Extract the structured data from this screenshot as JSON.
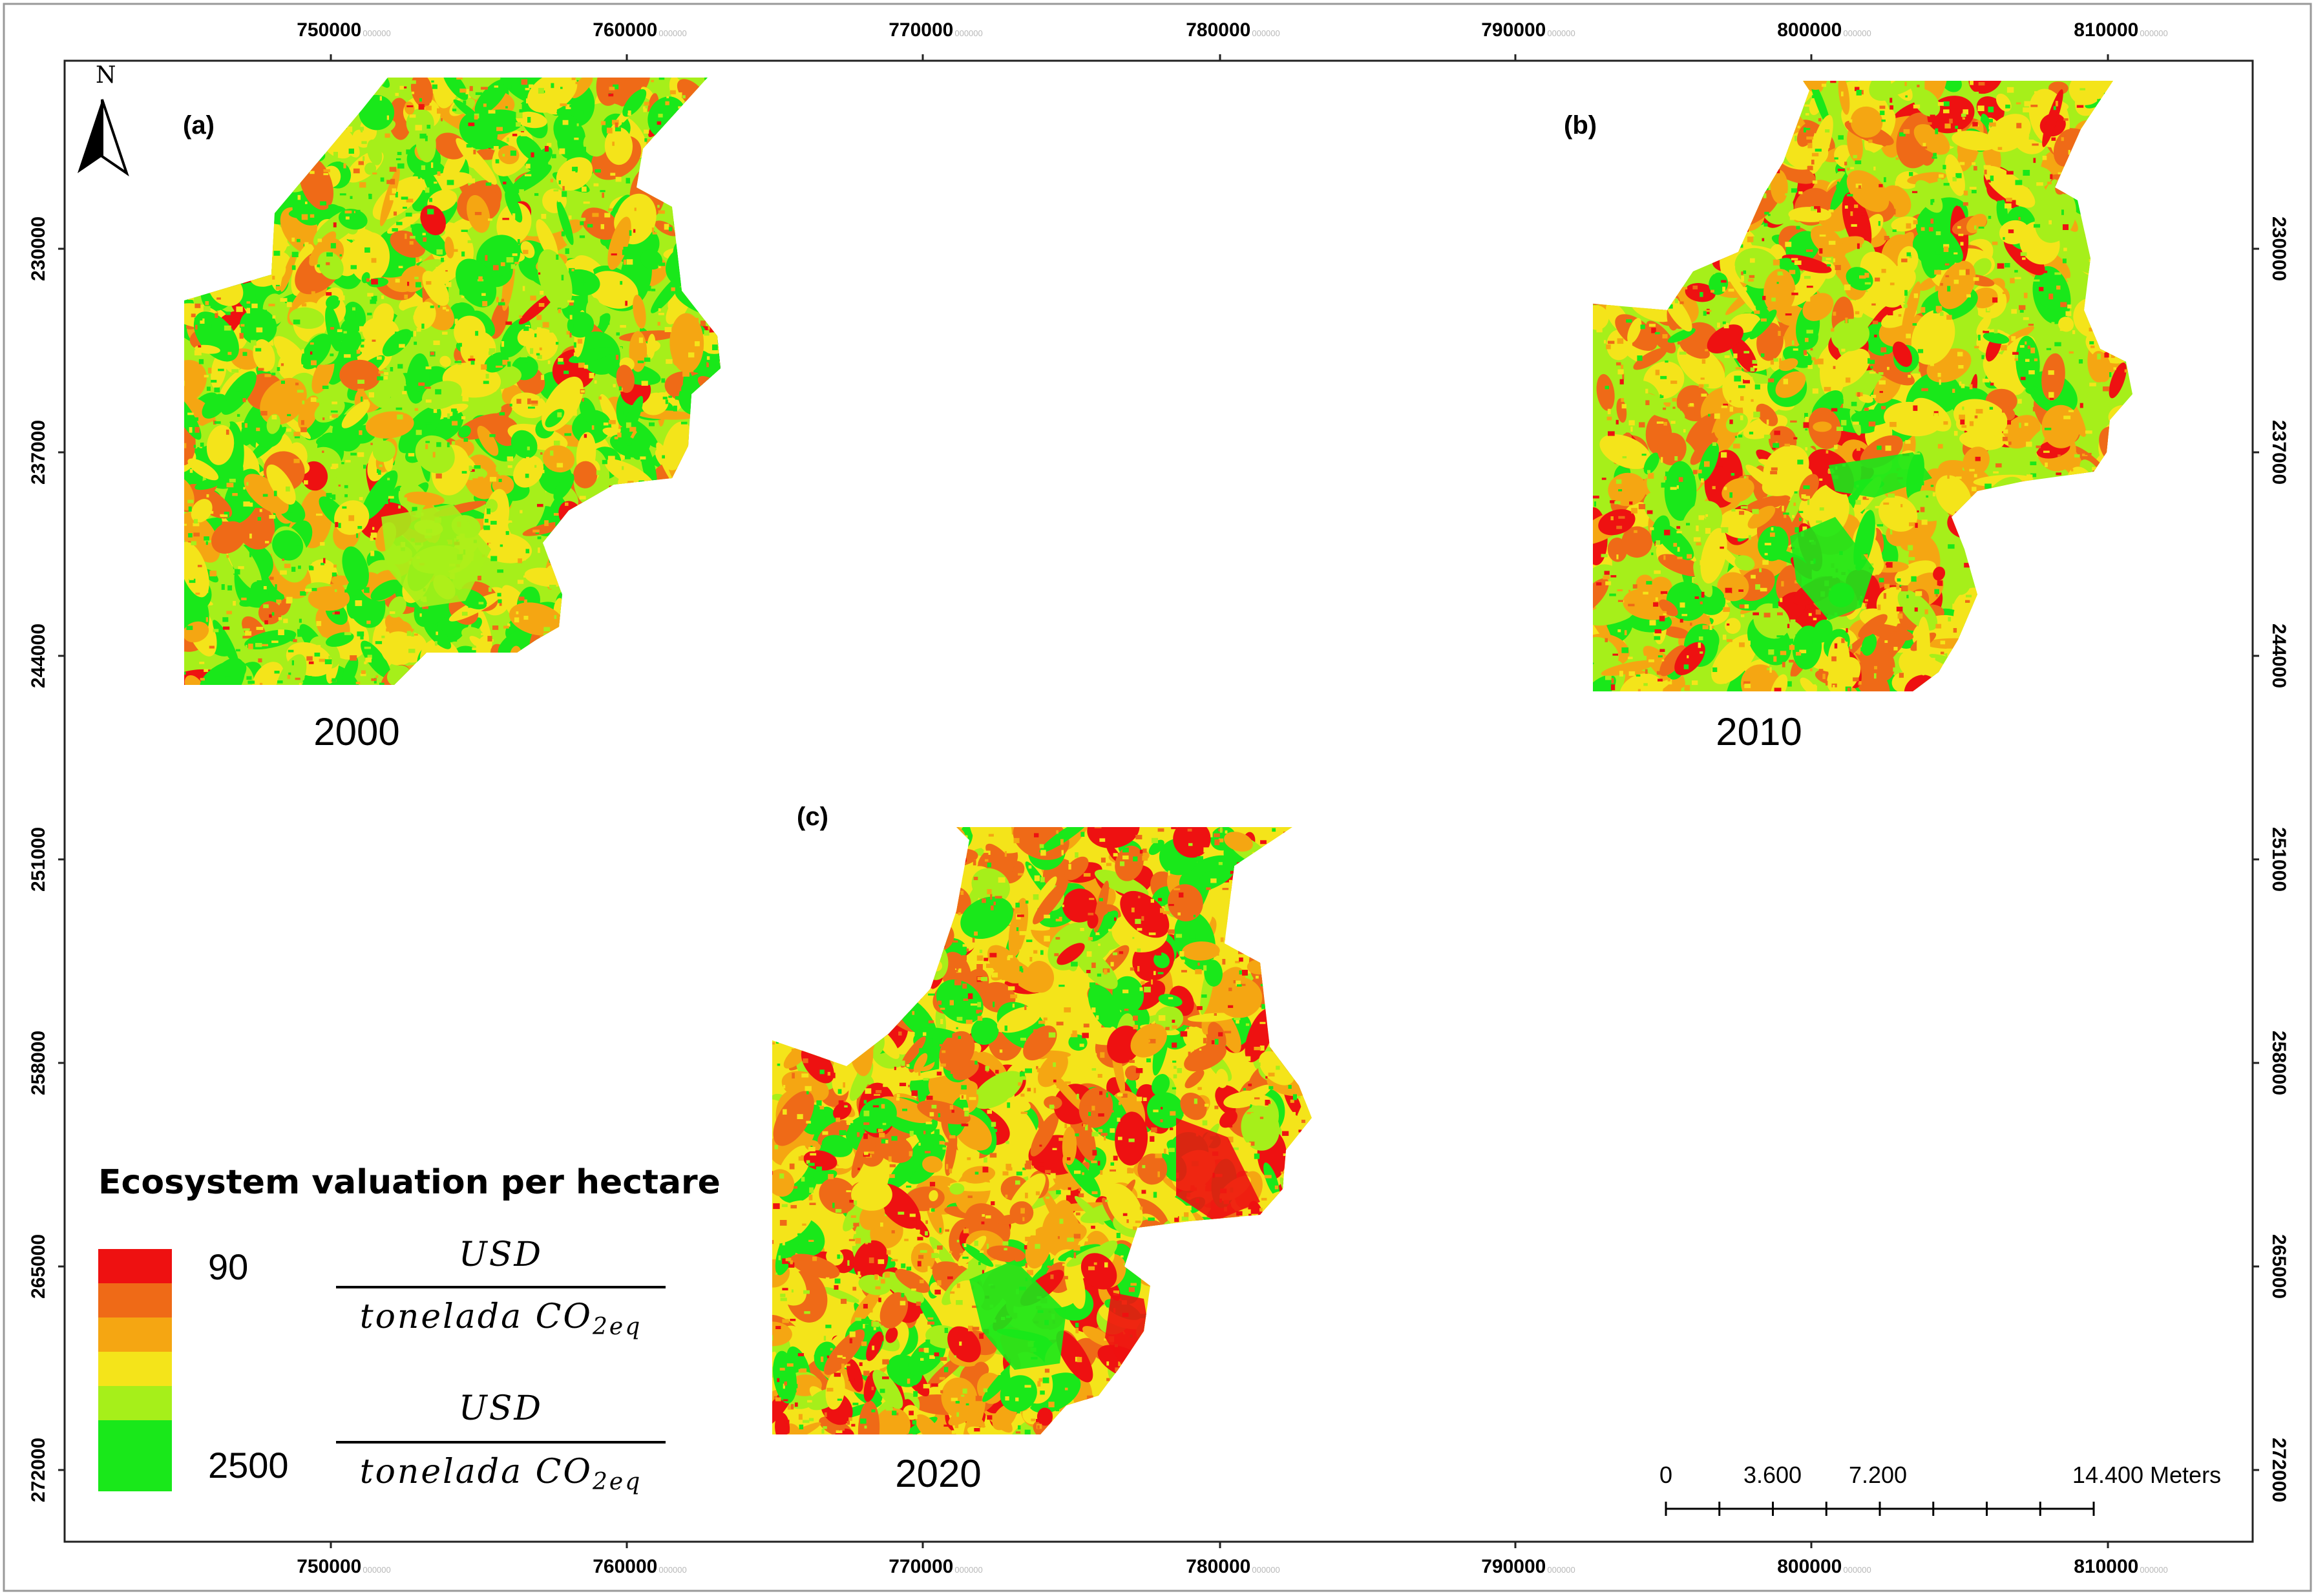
{
  "top_ticks": [
    {
      "label": "750000",
      "faint": "000000"
    },
    {
      "label": "760000",
      "faint": "000000"
    },
    {
      "label": "770000",
      "faint": "000000"
    },
    {
      "label": "780000",
      "faint": "000000"
    },
    {
      "label": "790000",
      "faint": "000000"
    },
    {
      "label": "800000",
      "faint": "000000"
    },
    {
      "label": "810000",
      "faint": "000000"
    }
  ],
  "side_ticks": [
    "230000",
    "237000",
    "244000",
    "251000",
    "258000",
    "265000",
    "272000"
  ],
  "north_arrow": {
    "letter": "N",
    "icon": "north-arrow-icon"
  },
  "panels": [
    {
      "label": "(a)",
      "year": "2000"
    },
    {
      "label": "(b)",
      "year": "2010"
    },
    {
      "label": "(c)",
      "year": "2020"
    }
  ],
  "legend": {
    "title": "Ecosystem valuation per hectare",
    "colors": [
      "#ee1111",
      "#ef6a17",
      "#f5a612",
      "#f4e41a",
      "#a6ef1a",
      "#19e81a"
    ],
    "high_label": "90",
    "low_label": "2500",
    "unit_numerator": "USD",
    "unit_denominator": "tonelada CO",
    "unit_subscript": "2eq"
  },
  "scale_bar": {
    "labels": [
      "0",
      "3.600",
      "7.200",
      "14.400 Meters"
    ]
  },
  "map_palette": {
    "red": "#ee1111",
    "orange": "#ef6a17",
    "amber": "#f5a612",
    "yellow": "#f4e41a",
    "lime": "#a6ef1a",
    "green": "#19e81a"
  }
}
